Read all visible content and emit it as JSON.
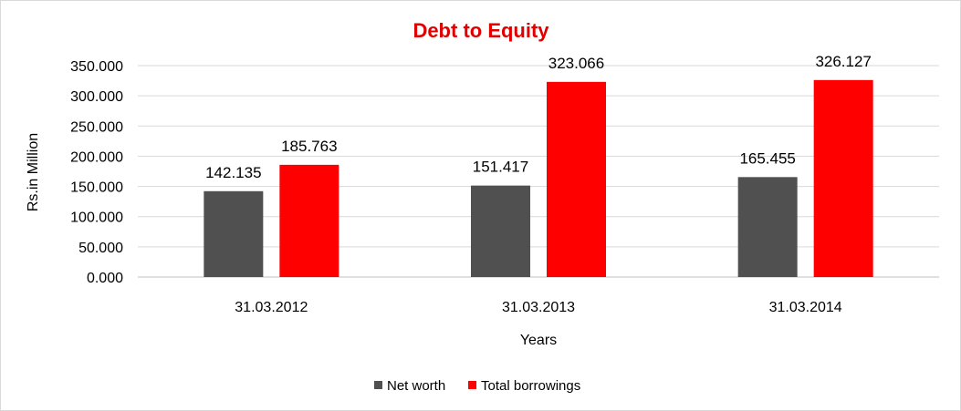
{
  "chart_data": {
    "type": "bar",
    "title": "Debt to Equity",
    "xlabel": "Years",
    "ylabel": "Rs.in Million",
    "categories": [
      "31.03.2012",
      "31.03.2013",
      "31.03.2014"
    ],
    "series": [
      {
        "name": "Net worth",
        "color": "#505050",
        "values": [
          142.135,
          151.417,
          165.455
        ],
        "labels": [
          "142.135",
          "151.417",
          "165.455"
        ]
      },
      {
        "name": "Total borrowings",
        "color": "#ff0000",
        "values": [
          185.763,
          323.066,
          326.127
        ],
        "labels": [
          "185.763",
          "323.066",
          "326.127"
        ]
      }
    ],
    "ylim": [
      0,
      350
    ],
    "yticks": [
      "0.000",
      "50.000",
      "100.000",
      "150.000",
      "200.000",
      "250.000",
      "300.000",
      "350.000"
    ],
    "ytick_values": [
      0,
      50,
      100,
      150,
      200,
      250,
      300,
      350
    ],
    "grid": true,
    "legend_position": "bottom",
    "title_color": "#e00000"
  }
}
